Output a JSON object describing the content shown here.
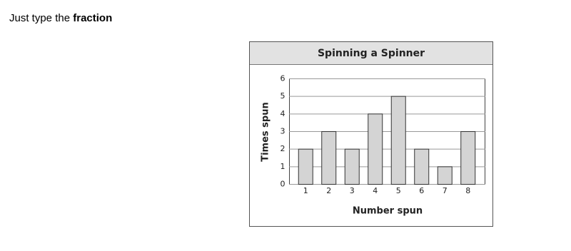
{
  "prompt": {
    "text": "Just type the",
    "emphasis": "fraction"
  },
  "chart_data": {
    "type": "bar",
    "title": "Spinning a Spinner",
    "x_label": "Number spun",
    "y_label": "Times spun",
    "categories": [
      "1",
      "2",
      "3",
      "4",
      "5",
      "6",
      "7",
      "8"
    ],
    "values": [
      2,
      3,
      2,
      4,
      5,
      2,
      1,
      3
    ],
    "color": "#d4d4d4",
    "ylim": [
      0,
      6
    ],
    "yticks": [
      0,
      1,
      2,
      3,
      4,
      5,
      6
    ],
    "grid": true
  }
}
